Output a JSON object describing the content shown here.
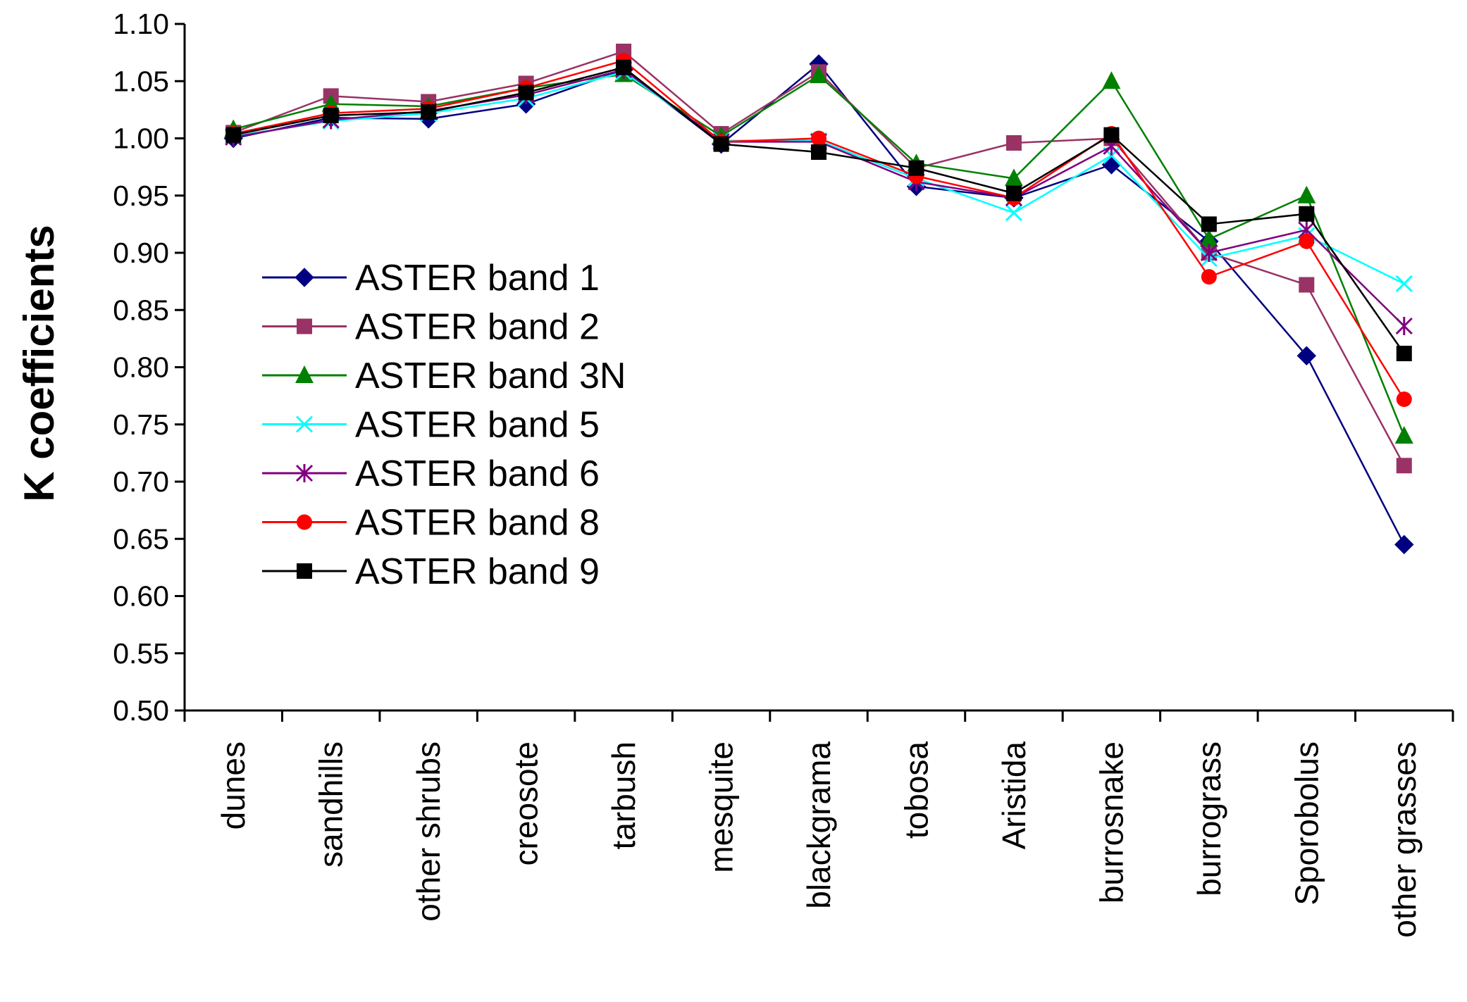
{
  "chart_data": {
    "type": "line",
    "title": "",
    "xlabel": "",
    "ylabel": "K coefficients",
    "ylim": [
      0.5,
      1.1
    ],
    "ytick_step": 0.05,
    "yticks": [
      "0.50",
      "0.55",
      "0.60",
      "0.65",
      "0.70",
      "0.75",
      "0.80",
      "0.85",
      "0.90",
      "0.95",
      "1.00",
      "1.05",
      "1.10"
    ],
    "grid": false,
    "legend_position": "left-middle",
    "categories": [
      "dunes",
      "sandhills",
      "other shrubs",
      "creosote",
      "tarbush",
      "mesquite",
      "blackgrama",
      "tobosa",
      "Aristida",
      "burrosnake",
      "burrograss",
      "Sporobolus",
      "other grasses"
    ],
    "series": [
      {
        "name": "ASTER band 1",
        "color": "#000080",
        "marker": "diamond",
        "values": [
          1.0,
          1.018,
          1.017,
          1.03,
          1.06,
          0.995,
          1.065,
          0.958,
          0.948,
          0.977,
          0.91,
          0.81,
          0.645
        ]
      },
      {
        "name": "ASTER band 2",
        "color": "#993366",
        "marker": "square",
        "values": [
          1.005,
          1.037,
          1.032,
          1.048,
          1.076,
          1.004,
          1.058,
          0.974,
          0.996,
          1.0,
          0.9,
          0.872,
          0.714
        ]
      },
      {
        "name": "ASTER band 3N",
        "color": "#008000",
        "marker": "triangle",
        "values": [
          1.008,
          1.03,
          1.028,
          1.044,
          1.056,
          1.002,
          1.055,
          0.978,
          0.965,
          1.05,
          0.912,
          0.95,
          0.74
        ]
      },
      {
        "name": "ASTER band 5",
        "color": "#00FFFF",
        "marker": "x",
        "values": [
          1.002,
          1.015,
          1.022,
          1.035,
          1.058,
          0.998,
          0.998,
          0.965,
          0.935,
          0.985,
          0.895,
          0.915,
          0.873
        ]
      },
      {
        "name": "ASTER band 6",
        "color": "#800080",
        "marker": "star",
        "values": [
          1.001,
          1.016,
          1.024,
          1.038,
          1.06,
          0.997,
          0.997,
          0.962,
          0.948,
          0.993,
          0.9,
          0.92,
          0.836
        ]
      },
      {
        "name": "ASTER band 8",
        "color": "#FF0000",
        "marker": "circle",
        "values": [
          1.004,
          1.022,
          1.026,
          1.044,
          1.068,
          0.997,
          1.0,
          0.967,
          0.948,
          1.004,
          0.879,
          0.91,
          0.772
        ]
      },
      {
        "name": "ASTER band 9",
        "color": "#000000",
        "marker": "square",
        "values": [
          1.003,
          1.02,
          1.023,
          1.04,
          1.062,
          0.995,
          0.988,
          0.974,
          0.952,
          1.003,
          0.925,
          0.934,
          0.812
        ]
      }
    ]
  }
}
